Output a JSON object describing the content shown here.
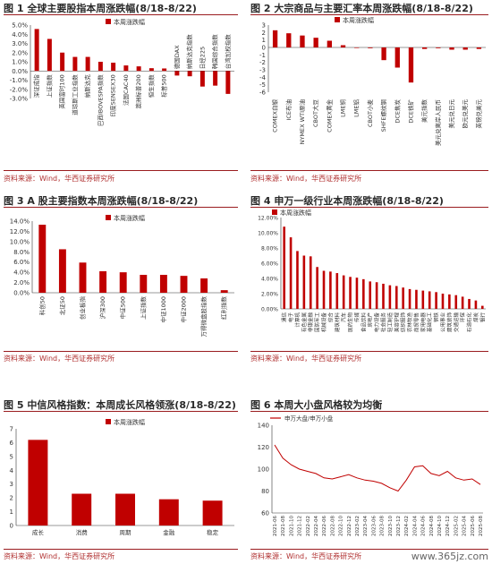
{
  "colors": {
    "bar": "#c00000",
    "line": "#c00000",
    "axis": "#333333",
    "title_rule": "#9a1c1f"
  },
  "panels": [
    {
      "title": "图 1  全球主要股指本周涨跌幅(8/18-8/22)",
      "source": "资料来源：Wind，华西证券研究所"
    },
    {
      "title": "图 2  大宗商品与主要汇率本周涨跌幅(8/18-8/22)",
      "source": "资料来源：Wind，华西证券研究所"
    },
    {
      "title": "图 3  A 股主要指数本周涨跌幅(8/18-8/22)",
      "source": "资料来源：Wind，华西证券研究所"
    },
    {
      "title": "图 4  申万一级行业本周涨跌幅(8/18-8/22)",
      "source": "资料来源：Wind，华西证券研究所"
    },
    {
      "title": "图 5  中信风格指数：本周成长风格领涨(8/18-8/22)",
      "source": "资料来源：Wind，华西证券研究所"
    },
    {
      "title": "图 6  本周大小盘风格较为均衡",
      "source": "资料来源：Wind，华西证券研究所"
    }
  ],
  "watermark": "www.365jz.com",
  "chart_data": [
    {
      "type": "bar",
      "legend": "本周涨跌幅",
      "categories": [
        "深证成指",
        "上证指数",
        "英国富时100",
        "道琼斯工业指数",
        "纳斯达克",
        "巴西IBOVESPA指数",
        "印度SENSEX30",
        "法国CAC40",
        "澳洲标普200",
        "恒生指数",
        "标普500",
        "德国DAX",
        "纳斯达克指数",
        "日经225",
        "韩国综合指数",
        "台湾加权指数"
      ],
      "values": [
        4.57,
        3.49,
        2.0,
        1.53,
        1.53,
        1.0,
        0.9,
        0.6,
        0.5,
        0.3,
        0.27,
        -0.5,
        -0.58,
        -1.7,
        -1.6,
        -2.5
      ],
      "ylim": [
        -3.0,
        5.0
      ],
      "yticks": [
        "5.0%",
        "4.0%",
        "3.0%",
        "2.0%",
        "1.0%",
        "0.0%",
        "-1.0%",
        "-2.0%",
        "-3.0%"
      ]
    },
    {
      "type": "bar",
      "legend": "本周涨跌幅",
      "categories": [
        "COMEX白银",
        "ICE布油",
        "NYMEX WTI原油",
        "CBOT大豆",
        "COMEX黄金",
        "LME铜",
        "LME铝",
        "CBOT小麦",
        "SHFE螺纹钢",
        "DCE焦炭",
        "DCE铁矿",
        "美元指数",
        "美元兑离岸人民币",
        "美元兑日元",
        "欧元兑美元",
        "英镑兑美元"
      ],
      "values": [
        2.3,
        1.9,
        1.6,
        1.3,
        0.9,
        0.3,
        0.0,
        -0.1,
        -1.7,
        -2.7,
        -4.7,
        -0.2,
        -0.1,
        -0.3,
        -0.3,
        -0.2
      ],
      "ylim": [
        -6,
        3
      ],
      "yticks": [
        "3",
        "2",
        "1",
        "0",
        "-1",
        "-2",
        "-3",
        "-4",
        "-5",
        "-6"
      ]
    },
    {
      "type": "bar",
      "legend": "本周涨跌幅",
      "categories": [
        "科创50",
        "北证50",
        "创业板指",
        "沪深300",
        "中证500",
        "上证指数",
        "中证1000",
        "中证2000",
        "万得微盘股指数",
        "红利指数"
      ],
      "values": [
        13.3,
        8.5,
        5.9,
        4.2,
        4.0,
        3.5,
        3.5,
        3.3,
        2.8,
        0.5
      ],
      "ylim": [
        0,
        14
      ],
      "yticks": [
        "14.0%",
        "12.0%",
        "10.0%",
        "8.0%",
        "6.0%",
        "4.0%",
        "2.0%",
        "0.0%"
      ]
    },
    {
      "type": "bar",
      "legend": "本周涨跌幅",
      "categories": [
        "通信",
        "电子",
        "计算机",
        "有色金属",
        "非银金融",
        "国防军工",
        "机械设备",
        "综合",
        "建筑材料",
        "汽车",
        "医药生物",
        "传媒",
        "食品饮料",
        "房地产",
        "电力设备",
        "社会服务",
        "轻工制造",
        "美容护理",
        "纺织服饰",
        "农林牧渔",
        "商贸零售",
        "家用电器",
        "基础化工",
        "钢铁",
        "公用事业",
        "建筑装饰",
        "交通运输",
        "环保",
        "石油石化",
        "煤炭",
        "银行"
      ],
      "values": [
        10.8,
        9.4,
        7.6,
        7.0,
        6.9,
        5.5,
        5.0,
        4.9,
        4.7,
        4.4,
        4.2,
        4.1,
        3.9,
        3.6,
        3.5,
        3.3,
        3.1,
        3.0,
        2.8,
        2.6,
        2.5,
        2.4,
        2.3,
        2.2,
        2.0,
        1.9,
        1.8,
        1.6,
        1.3,
        1.1,
        0.4
      ],
      "ylim": [
        0,
        12
      ],
      "yticks": [
        "12.00%",
        "10.00%",
        "8.00%",
        "6.00%",
        "4.00%",
        "2.00%",
        "0.00%"
      ]
    },
    {
      "type": "bar",
      "legend": "本周涨跌幅",
      "categories": [
        "成长",
        "消费",
        "周期",
        "金融",
        "稳定"
      ],
      "values": [
        6.2,
        2.3,
        2.3,
        1.9,
        1.8
      ],
      "ylim": [
        0,
        7
      ],
      "yticks": [
        "7",
        "6",
        "5",
        "4",
        "3",
        "2",
        "1",
        "0"
      ]
    },
    {
      "type": "line",
      "legend": "申万大盘/申万小盘",
      "ylim": [
        60,
        140
      ],
      "yticks": [
        "140",
        "120",
        "100",
        "80",
        "60"
      ],
      "x": [
        "2021-06",
        "2021-08",
        "2021-10",
        "2021-12",
        "2022-02",
        "2022-04",
        "2022-06",
        "2022-08",
        "2022-10",
        "2022-12",
        "2023-02",
        "2023-04",
        "2023-06",
        "2023-08",
        "2023-10",
        "2023-12",
        "2024-02",
        "2024-04",
        "2024-06",
        "2024-08",
        "2024-10",
        "2024-12",
        "2025-02",
        "2025-04",
        "2025-06",
        "2025-08"
      ],
      "values": [
        122,
        110,
        104,
        100,
        98,
        96,
        92,
        91,
        93,
        95,
        92,
        90,
        89,
        87,
        83,
        80,
        90,
        102,
        103,
        96,
        94,
        98,
        92,
        90,
        91,
        86
      ]
    }
  ]
}
